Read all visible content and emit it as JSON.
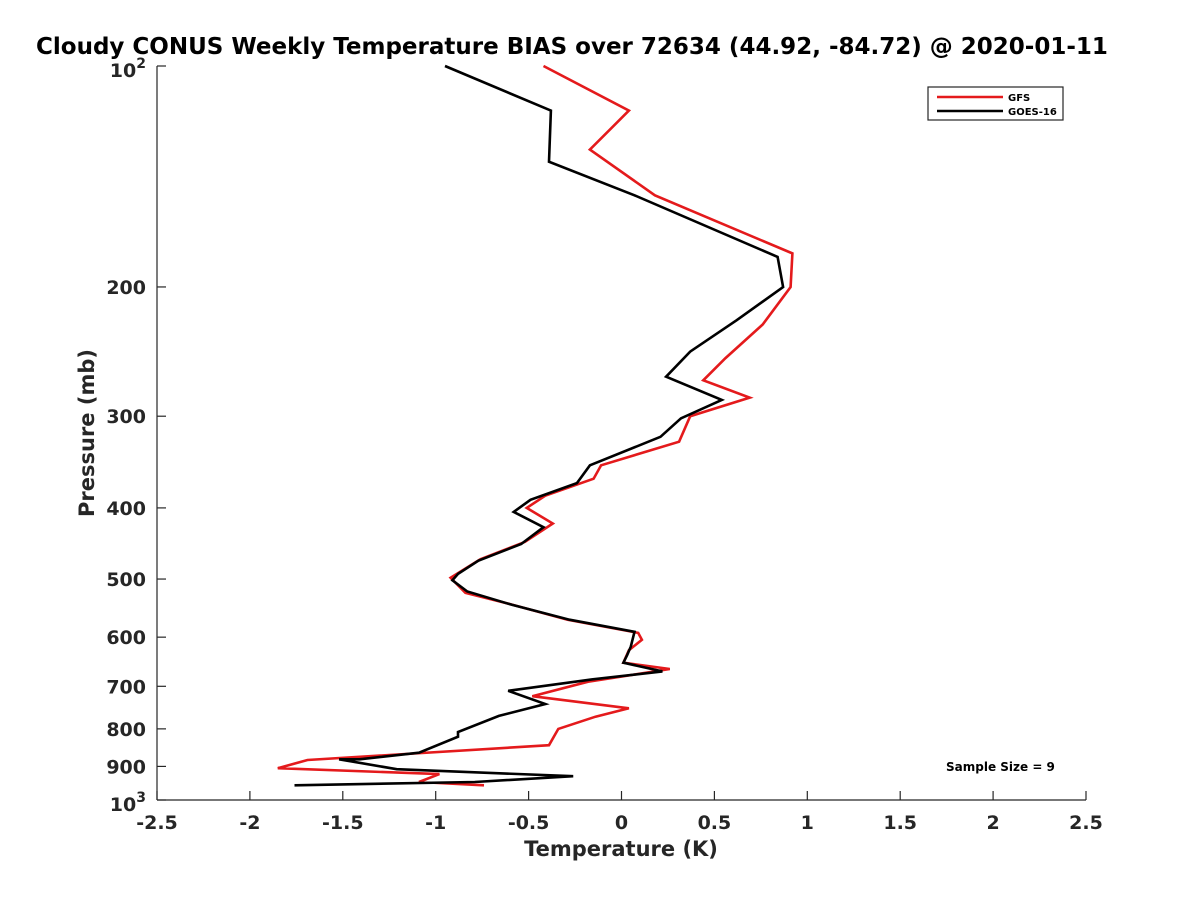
{
  "chart_data": {
    "type": "line",
    "title": "Cloudy CONUS Weekly Temperature BIAS over 72634 (44.92, -84.72) @ 2020-01-11",
    "xlabel": "Temperature (K)",
    "ylabel": "Pressure (mb)",
    "xlim": [
      -2.5,
      2.5
    ],
    "ylim": [
      100,
      1000
    ],
    "y_scale": "log",
    "y_reversed": true,
    "x_ticks": [
      -2.5,
      -2,
      -1.5,
      -1,
      -0.5,
      0,
      0.5,
      1,
      1.5,
      2,
      2.5
    ],
    "x_tick_labels": [
      "-2.5",
      "-2",
      "-1.5",
      "-1",
      "-0.5",
      "0",
      "0.5",
      "1",
      "1.5",
      "2",
      "2.5"
    ],
    "y_ticks": [
      200,
      300,
      400,
      500,
      600,
      700,
      800,
      900
    ],
    "y_tick_labels": [
      "200",
      "300",
      "400",
      "500",
      "600",
      "700",
      "800",
      "900"
    ],
    "y_top_label": {
      "base": "10",
      "exp": "2"
    },
    "y_bottom_label": {
      "base": "10",
      "exp": "3"
    },
    "grid": false,
    "legend_position": "top-right",
    "annotation": "Sample Size = 9",
    "series": [
      {
        "name": "GFS",
        "color": "#e41a1c",
        "points": [
          [
            -0.42,
            100
          ],
          [
            0.04,
            115
          ],
          [
            -0.17,
            130
          ],
          [
            0.18,
            150
          ],
          [
            0.92,
            180
          ],
          [
            0.91,
            200
          ],
          [
            0.76,
            225
          ],
          [
            0.56,
            250
          ],
          [
            0.44,
            268
          ],
          [
            0.69,
            283
          ],
          [
            0.37,
            300
          ],
          [
            0.31,
            325
          ],
          [
            -0.11,
            350
          ],
          [
            -0.15,
            365
          ],
          [
            -0.41,
            385
          ],
          [
            -0.51,
            400
          ],
          [
            -0.37,
            420
          ],
          [
            -0.52,
            445
          ],
          [
            -0.76,
            470
          ],
          [
            -0.92,
            498
          ],
          [
            -0.84,
            522
          ],
          [
            -0.61,
            540
          ],
          [
            -0.29,
            568
          ],
          [
            0.09,
            592
          ],
          [
            0.11,
            605
          ],
          [
            0.04,
            625
          ],
          [
            0.01,
            650
          ],
          [
            0.26,
            663
          ],
          [
            -0.18,
            690
          ],
          [
            -0.48,
            722
          ],
          [
            0.04,
            750
          ],
          [
            -0.14,
            770
          ],
          [
            -0.34,
            800
          ],
          [
            -0.39,
            842
          ],
          [
            -1.69,
            882
          ],
          [
            -1.85,
            905
          ],
          [
            -0.98,
            922
          ],
          [
            -1.09,
            945
          ],
          [
            -0.74,
            955
          ]
        ]
      },
      {
        "name": "GOES-16",
        "color": "#000000",
        "points": [
          [
            -0.95,
            100
          ],
          [
            -0.38,
            115
          ],
          [
            -0.39,
            135
          ],
          [
            0.07,
            150
          ],
          [
            0.84,
            182
          ],
          [
            0.87,
            200
          ],
          [
            0.62,
            222
          ],
          [
            0.37,
            245
          ],
          [
            0.24,
            265
          ],
          [
            0.54,
            285
          ],
          [
            0.32,
            302
          ],
          [
            0.21,
            320
          ],
          [
            -0.17,
            350
          ],
          [
            -0.24,
            370
          ],
          [
            -0.49,
            390
          ],
          [
            -0.58,
            405
          ],
          [
            -0.42,
            425
          ],
          [
            -0.54,
            448
          ],
          [
            -0.77,
            472
          ],
          [
            -0.88,
            492
          ],
          [
            -0.91,
            502
          ],
          [
            -0.83,
            520
          ],
          [
            -0.59,
            542
          ],
          [
            -0.28,
            568
          ],
          [
            0.07,
            590
          ],
          [
            0.05,
            618
          ],
          [
            0.03,
            635
          ],
          [
            0.01,
            650
          ],
          [
            0.22,
            668
          ],
          [
            -0.16,
            685
          ],
          [
            -0.61,
            710
          ],
          [
            -0.41,
            740
          ],
          [
            -0.66,
            768
          ],
          [
            -0.88,
            808
          ],
          [
            -0.88,
            820
          ],
          [
            -1.09,
            862
          ],
          [
            -1.41,
            880
          ],
          [
            -1.52,
            880
          ],
          [
            -1.21,
            908
          ],
          [
            -0.26,
            928
          ],
          [
            -0.79,
            945
          ],
          [
            -1.76,
            955
          ]
        ]
      }
    ]
  }
}
